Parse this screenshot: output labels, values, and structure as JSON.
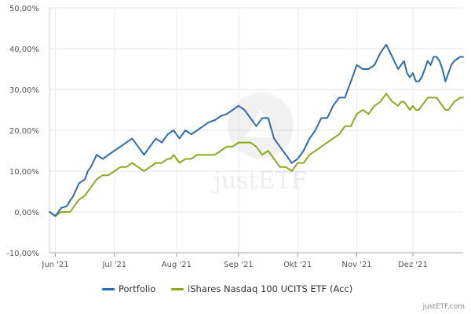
{
  "chart_data": {
    "type": "line",
    "title": "",
    "xlabel": "",
    "ylabel": "",
    "ylim": [
      -10,
      50
    ],
    "yticks": [
      "-10,00%",
      "0,00%",
      "10,00%",
      "20,00%",
      "30,00%",
      "40,00%",
      "50,00%"
    ],
    "ytick_values": [
      -10,
      0,
      10,
      20,
      30,
      40,
      50
    ],
    "xticks": [
      "Jun '21",
      "Jul '21",
      "Aug '21",
      "Sep '21",
      "Okt '21",
      "Nov '21",
      "Dez '21"
    ],
    "xtick_values": [
      2,
      22,
      43,
      64,
      84,
      104,
      123
    ],
    "xlim": [
      0,
      140
    ],
    "watermark": "justETF",
    "series": [
      {
        "name": "Portfolio",
        "color": "#2b6cb0",
        "x": [
          0,
          2,
          4,
          5,
          6,
          7,
          8,
          10,
          12,
          13,
          14,
          16,
          18,
          20,
          22,
          24,
          26,
          28,
          30,
          32,
          34,
          36,
          38,
          40,
          41,
          42,
          43,
          44,
          46,
          48,
          50,
          52,
          54,
          56,
          58,
          60,
          62,
          64,
          66,
          68,
          70,
          72,
          74,
          76,
          78,
          80,
          82,
          84,
          86,
          88,
          90,
          92,
          94,
          96,
          98,
          100,
          102,
          104,
          106,
          108,
          110,
          112,
          114,
          116,
          118,
          119,
          120,
          121,
          122,
          123,
          124,
          125,
          126,
          127,
          128,
          129,
          130,
          131,
          132,
          133,
          134,
          135,
          136,
          137,
          138,
          139,
          140
        ],
        "values": [
          0,
          -1,
          1,
          1.2,
          1.5,
          2.8,
          3.8,
          7,
          8,
          10,
          11,
          14,
          13,
          14,
          15,
          16,
          17,
          18,
          16,
          14,
          16,
          18,
          17,
          19,
          19.5,
          20,
          19,
          18,
          20,
          19,
          20,
          21,
          22,
          22.5,
          23.5,
          24,
          25,
          26,
          25,
          23,
          21,
          23,
          23,
          18,
          16,
          14,
          12,
          13,
          15,
          18,
          20,
          23,
          23,
          26,
          28,
          28,
          32,
          36,
          35,
          35,
          36,
          39,
          41,
          38,
          35,
          36,
          37,
          34,
          33,
          34,
          32,
          32,
          33,
          35,
          37,
          36,
          38,
          38,
          37,
          35,
          32,
          34,
          36,
          37,
          37.5,
          38,
          38
        ]
      },
      {
        "name": "iShares Nasdaq 100 UCITS ETF (Acc)",
        "color": "#8aab1e",
        "x": [
          0,
          2,
          4,
          5,
          6,
          7,
          8,
          10,
          12,
          13,
          14,
          16,
          18,
          20,
          22,
          24,
          26,
          28,
          30,
          32,
          34,
          36,
          38,
          40,
          41,
          42,
          43,
          44,
          46,
          48,
          50,
          52,
          54,
          56,
          58,
          60,
          62,
          64,
          66,
          68,
          70,
          72,
          74,
          76,
          78,
          80,
          82,
          84,
          86,
          88,
          90,
          92,
          94,
          96,
          98,
          100,
          102,
          104,
          106,
          108,
          110,
          112,
          114,
          116,
          118,
          119,
          120,
          121,
          122,
          123,
          124,
          125,
          126,
          127,
          128,
          129,
          130,
          131,
          132,
          133,
          134,
          135,
          136,
          137,
          138,
          139,
          140
        ],
        "values": [
          0,
          -1,
          0,
          0,
          0,
          0,
          1,
          3,
          4,
          5,
          6,
          8,
          9,
          9,
          10,
          11,
          11,
          12,
          11,
          10,
          11,
          12,
          12,
          13,
          13,
          14,
          13,
          12,
          13,
          13,
          14,
          14,
          14,
          14,
          15,
          16,
          16,
          17,
          17,
          17,
          16,
          14,
          15,
          13,
          11,
          11,
          10,
          12,
          12,
          14,
          15,
          16,
          17,
          18,
          19,
          21,
          21,
          24,
          25,
          24,
          26,
          27,
          29,
          27,
          26,
          27,
          27,
          26,
          25,
          26,
          25,
          25,
          26,
          27,
          28,
          28,
          28,
          28,
          27,
          26,
          25,
          25,
          26,
          27,
          27.5,
          28,
          28
        ]
      }
    ]
  },
  "legend": {
    "portfolio_label": "Portfolio",
    "etf_label": "iShares Nasdaq 100 UCITS ETF (Acc)"
  },
  "credit": "justETF.com"
}
